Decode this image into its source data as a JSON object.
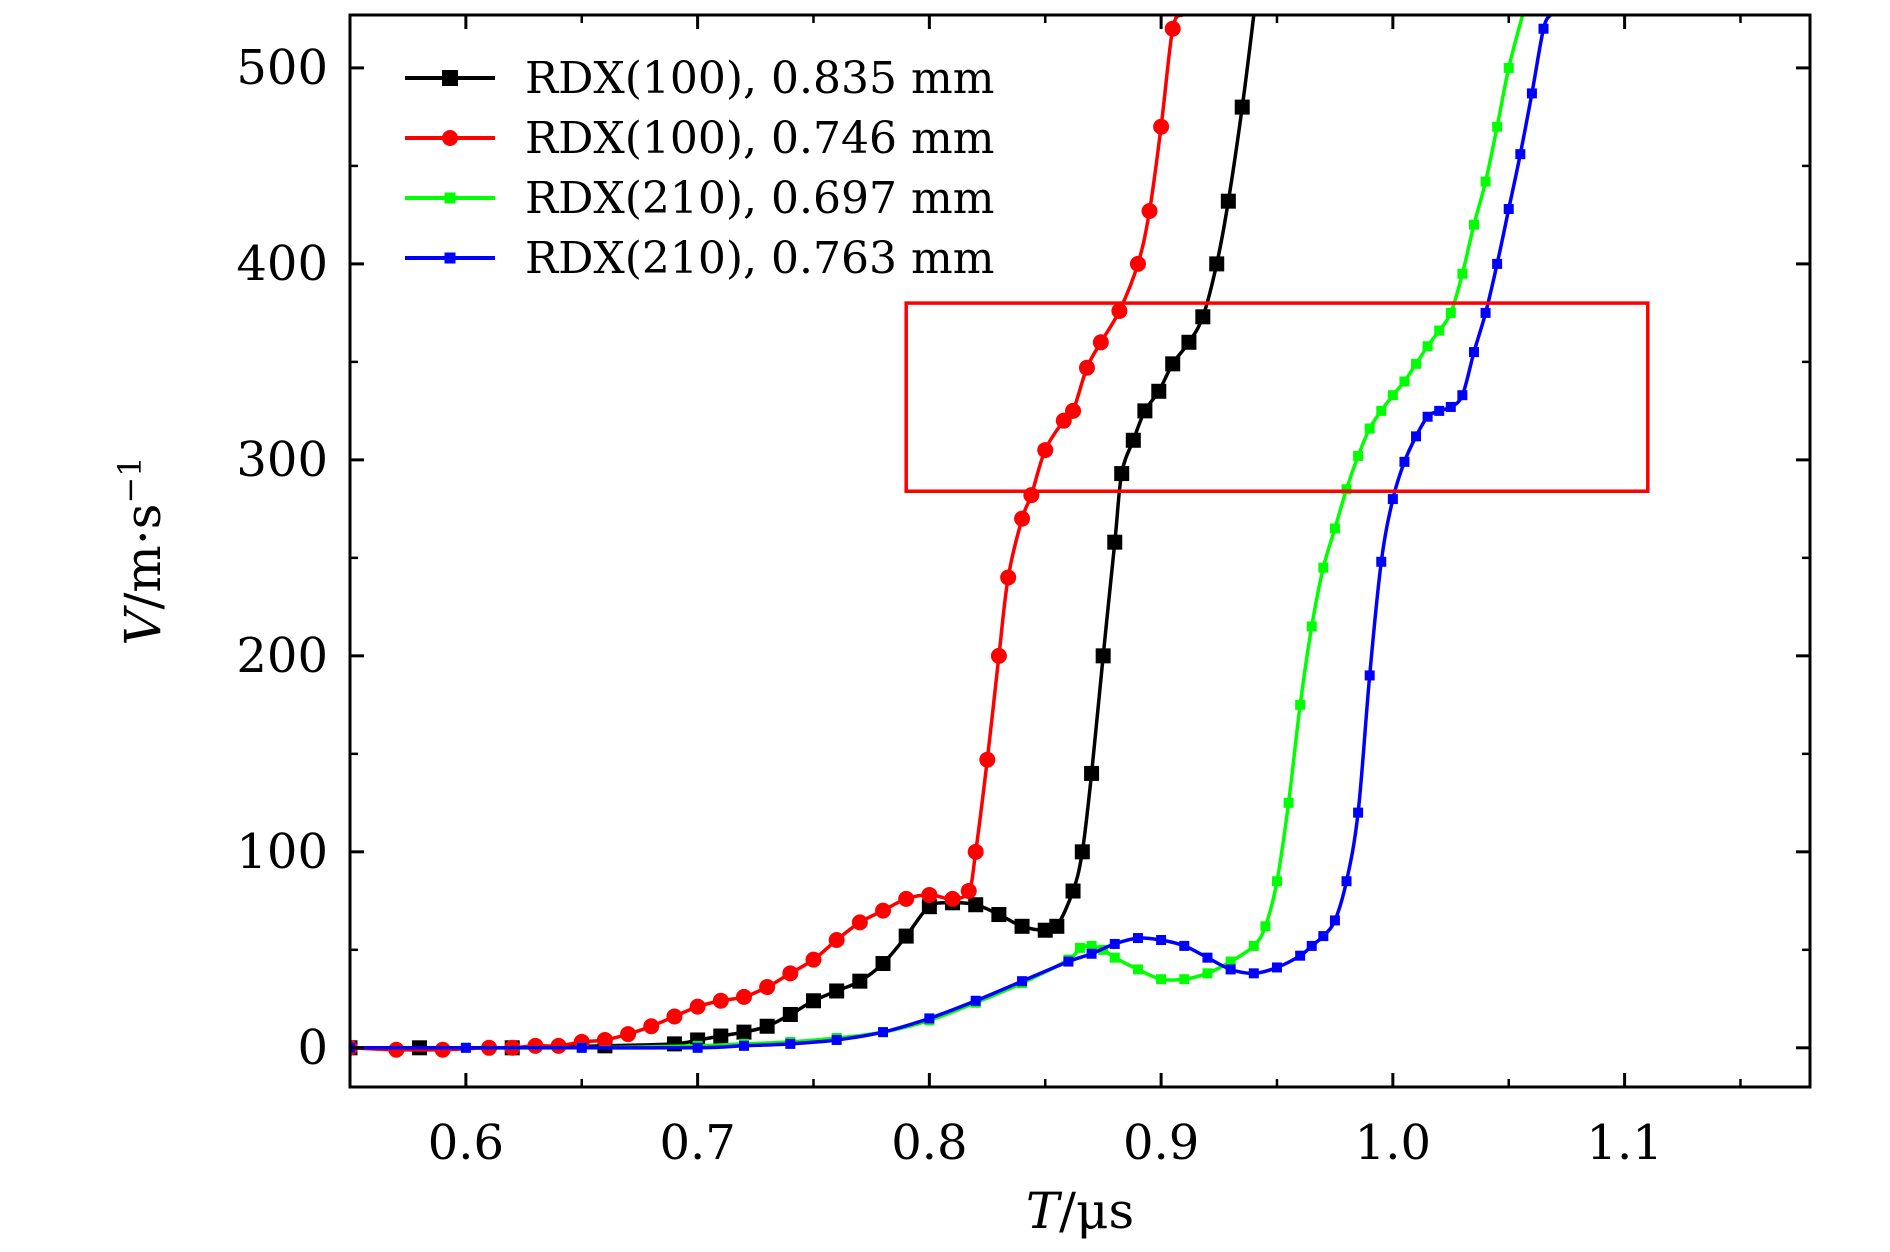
{
  "chart_data": {
    "type": "line",
    "xlim": [
      0.55,
      1.18
    ],
    "ylim": [
      -20,
      527
    ],
    "x_ticks": [
      0.6,
      0.7,
      0.8,
      0.9,
      1.0,
      1.1
    ],
    "x_tick_labels": [
      "0.6",
      "0.7",
      "0.8",
      "0.9",
      "1.0",
      "1.1"
    ],
    "y_ticks": [
      0,
      100,
      200,
      300,
      400,
      500
    ],
    "y_tick_labels": [
      "0",
      "100",
      "200",
      "300",
      "400",
      "500"
    ],
    "xlabel_var": "T",
    "xlabel_unit": "/μs",
    "ylabel_var": "V",
    "ylabel_unit": "/m·s",
    "ylabel_exp": "−1",
    "grid": false,
    "legend_position": "top-left",
    "annotation_box": {
      "x0": 0.79,
      "x1": 1.11,
      "y0": 284,
      "y1": 380,
      "color": "#ff0000"
    },
    "series": [
      {
        "name": "RDX(100), 0.835 mm",
        "color": "#000000",
        "marker": "square",
        "points": [
          [
            0.55,
            0
          ],
          [
            0.58,
            0
          ],
          [
            0.62,
            0
          ],
          [
            0.66,
            1
          ],
          [
            0.69,
            2
          ],
          [
            0.7,
            4
          ],
          [
            0.71,
            6
          ],
          [
            0.72,
            8
          ],
          [
            0.73,
            11
          ],
          [
            0.74,
            17
          ],
          [
            0.75,
            24
          ],
          [
            0.76,
            29
          ],
          [
            0.77,
            34
          ],
          [
            0.78,
            43
          ],
          [
            0.79,
            57
          ],
          [
            0.8,
            72
          ],
          [
            0.81,
            74
          ],
          [
            0.82,
            73
          ],
          [
            0.83,
            68
          ],
          [
            0.84,
            62
          ],
          [
            0.85,
            60
          ],
          [
            0.855,
            62
          ],
          [
            0.862,
            80
          ],
          [
            0.866,
            100
          ],
          [
            0.87,
            140
          ],
          [
            0.875,
            200
          ],
          [
            0.88,
            258
          ],
          [
            0.883,
            293
          ],
          [
            0.888,
            310
          ],
          [
            0.893,
            325
          ],
          [
            0.899,
            335
          ],
          [
            0.905,
            349
          ],
          [
            0.912,
            360
          ],
          [
            0.918,
            373
          ],
          [
            0.924,
            400
          ],
          [
            0.929,
            432
          ],
          [
            0.935,
            480
          ],
          [
            0.94,
            527
          ]
        ]
      },
      {
        "name": "RDX(100), 0.746 mm",
        "color": "#ff0000",
        "marker": "circle",
        "points": [
          [
            0.55,
            0
          ],
          [
            0.57,
            -1
          ],
          [
            0.59,
            -1
          ],
          [
            0.61,
            0
          ],
          [
            0.62,
            0
          ],
          [
            0.63,
            1
          ],
          [
            0.64,
            1
          ],
          [
            0.65,
            3
          ],
          [
            0.66,
            4
          ],
          [
            0.67,
            7
          ],
          [
            0.68,
            11
          ],
          [
            0.69,
            16
          ],
          [
            0.7,
            21
          ],
          [
            0.71,
            24
          ],
          [
            0.72,
            26
          ],
          [
            0.73,
            31
          ],
          [
            0.74,
            38
          ],
          [
            0.75,
            45
          ],
          [
            0.76,
            55
          ],
          [
            0.77,
            64
          ],
          [
            0.78,
            70
          ],
          [
            0.79,
            76
          ],
          [
            0.8,
            78
          ],
          [
            0.81,
            76
          ],
          [
            0.817,
            80
          ],
          [
            0.82,
            100
          ],
          [
            0.825,
            147
          ],
          [
            0.83,
            200
          ],
          [
            0.834,
            240
          ],
          [
            0.84,
            270
          ],
          [
            0.844,
            282
          ],
          [
            0.85,
            305
          ],
          [
            0.858,
            320
          ],
          [
            0.862,
            325
          ],
          [
            0.868,
            347
          ],
          [
            0.874,
            360
          ],
          [
            0.882,
            376
          ],
          [
            0.89,
            400
          ],
          [
            0.895,
            427
          ],
          [
            0.9,
            470
          ],
          [
            0.905,
            520
          ],
          [
            0.909,
            527
          ]
        ]
      },
      {
        "name": "RDX(210), 0.697 mm",
        "color": "#00ff00",
        "marker": "square",
        "points": [
          [
            0.55,
            0
          ],
          [
            0.6,
            0
          ],
          [
            0.65,
            0
          ],
          [
            0.7,
            1
          ],
          [
            0.72,
            2
          ],
          [
            0.74,
            3
          ],
          [
            0.76,
            5
          ],
          [
            0.78,
            8
          ],
          [
            0.8,
            14
          ],
          [
            0.82,
            23
          ],
          [
            0.84,
            33
          ],
          [
            0.86,
            45
          ],
          [
            0.865,
            51
          ],
          [
            0.87,
            52
          ],
          [
            0.875,
            50
          ],
          [
            0.88,
            46
          ],
          [
            0.89,
            40
          ],
          [
            0.9,
            35
          ],
          [
            0.91,
            35
          ],
          [
            0.92,
            38
          ],
          [
            0.93,
            44
          ],
          [
            0.94,
            52
          ],
          [
            0.945,
            62
          ],
          [
            0.95,
            85
          ],
          [
            0.955,
            125
          ],
          [
            0.96,
            175
          ],
          [
            0.965,
            215
          ],
          [
            0.97,
            245
          ],
          [
            0.975,
            265
          ],
          [
            0.98,
            285
          ],
          [
            0.985,
            302
          ],
          [
            0.99,
            316
          ],
          [
            0.995,
            325
          ],
          [
            1.0,
            333
          ],
          [
            1.005,
            340
          ],
          [
            1.01,
            349
          ],
          [
            1.015,
            358
          ],
          [
            1.02,
            366
          ],
          [
            1.025,
            375
          ],
          [
            1.03,
            395
          ],
          [
            1.035,
            420
          ],
          [
            1.04,
            442
          ],
          [
            1.045,
            470
          ],
          [
            1.05,
            500
          ],
          [
            1.056,
            527
          ]
        ]
      },
      {
        "name": "RDX(210), 0.763 mm",
        "color": "#0000ff",
        "marker": "square",
        "points": [
          [
            0.55,
            0
          ],
          [
            0.6,
            0
          ],
          [
            0.65,
            0
          ],
          [
            0.7,
            0
          ],
          [
            0.72,
            1
          ],
          [
            0.74,
            2
          ],
          [
            0.76,
            4
          ],
          [
            0.78,
            8
          ],
          [
            0.8,
            15
          ],
          [
            0.82,
            24
          ],
          [
            0.84,
            34
          ],
          [
            0.86,
            44
          ],
          [
            0.87,
            48
          ],
          [
            0.88,
            53
          ],
          [
            0.89,
            56
          ],
          [
            0.9,
            55
          ],
          [
            0.91,
            52
          ],
          [
            0.92,
            46
          ],
          [
            0.93,
            40
          ],
          [
            0.94,
            38
          ],
          [
            0.95,
            41
          ],
          [
            0.96,
            47
          ],
          [
            0.965,
            52
          ],
          [
            0.97,
            57
          ],
          [
            0.975,
            65
          ],
          [
            0.98,
            85
          ],
          [
            0.985,
            120
          ],
          [
            0.99,
            190
          ],
          [
            0.995,
            248
          ],
          [
            1.0,
            280
          ],
          [
            1.005,
            299
          ],
          [
            1.01,
            312
          ],
          [
            1.015,
            322
          ],
          [
            1.02,
            325
          ],
          [
            1.025,
            327
          ],
          [
            1.03,
            333
          ],
          [
            1.035,
            355
          ],
          [
            1.04,
            375
          ],
          [
            1.045,
            400
          ],
          [
            1.05,
            428
          ],
          [
            1.055,
            456
          ],
          [
            1.06,
            487
          ],
          [
            1.065,
            520
          ],
          [
            1.068,
            527
          ]
        ]
      }
    ]
  }
}
